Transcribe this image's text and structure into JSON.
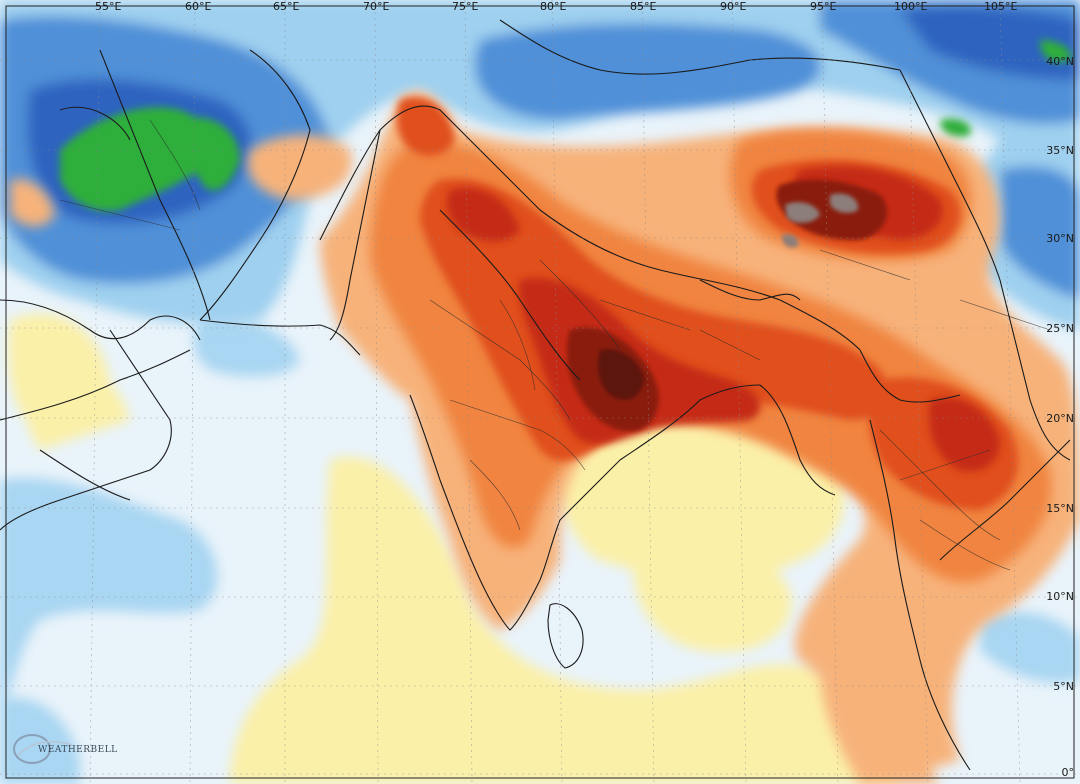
{
  "map": {
    "provider_logo": "WEATHERBELL",
    "longitude_labels": [
      "55°E",
      "60°E",
      "65°E",
      "70°E",
      "75°E",
      "80°E",
      "85°E",
      "90°E",
      "95°E",
      "100°E",
      "105°E"
    ],
    "latitude_labels": [
      "40°N",
      "35°N",
      "30°N",
      "25°N",
      "20°N",
      "15°N",
      "10°N",
      "5°N",
      "0°"
    ],
    "colors": {
      "ocean_base": "#e9f3fa",
      "pale_yellow": "#fbf0a8",
      "light_orange": "#f7b27a",
      "orange": "#f0843f",
      "red_orange": "#e04f1e",
      "red": "#c42a12",
      "dark_red": "#8a1a0a",
      "maroon": "#5c1408",
      "gray_extreme": "#8c7e7a",
      "light_blue": "#9fd0ef",
      "blue": "#4f90d8",
      "deep_blue": "#2f63c0",
      "green": "#2fae3a"
    }
  }
}
